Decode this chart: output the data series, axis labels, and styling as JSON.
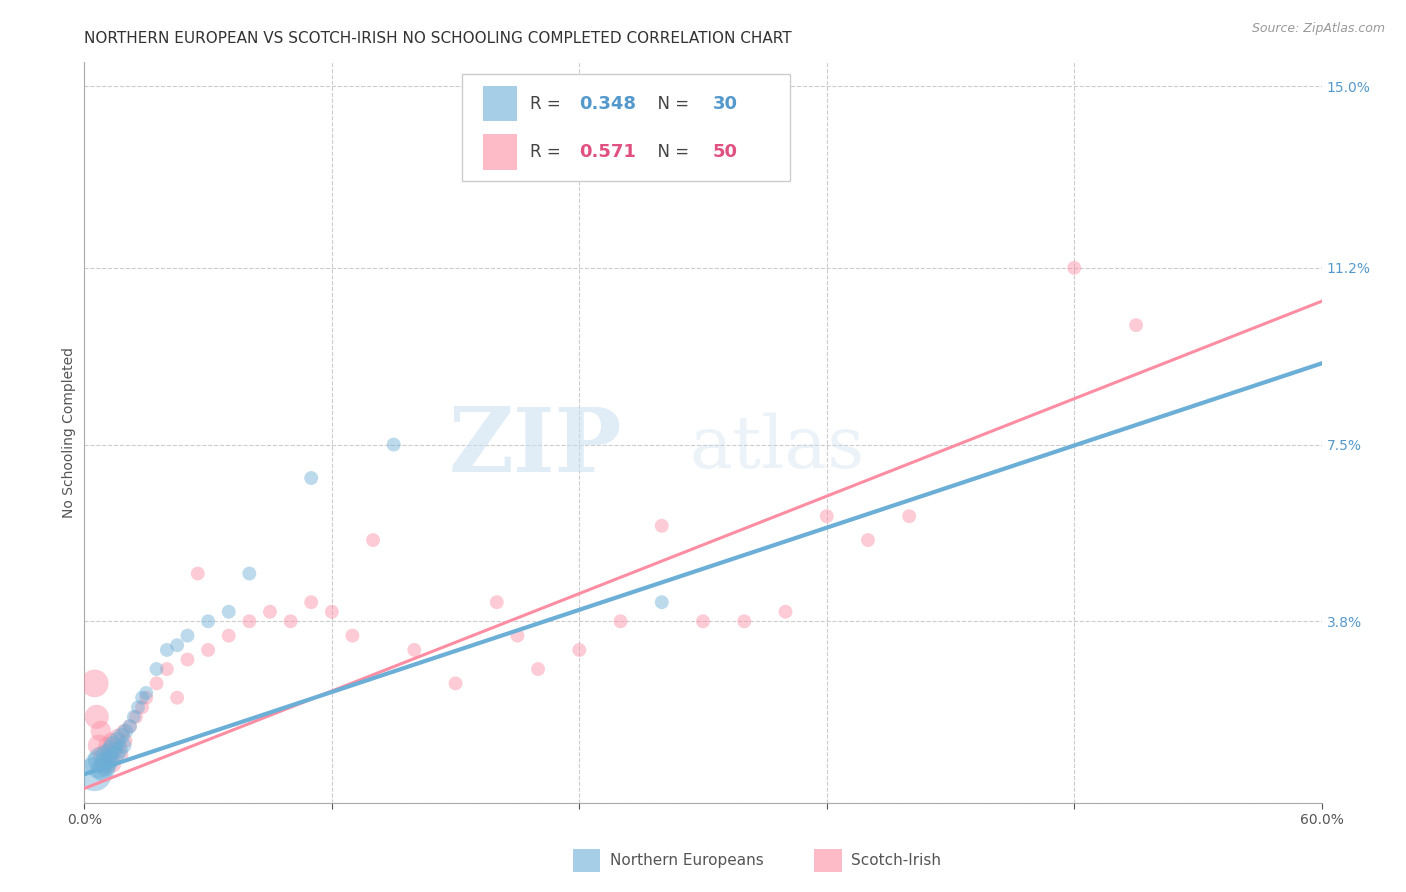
{
  "title": "NORTHERN EUROPEAN VS SCOTCH-IRISH NO SCHOOLING COMPLETED CORRELATION CHART",
  "source": "Source: ZipAtlas.com",
  "ylabel": "No Schooling Completed",
  "xlim": [
    0.0,
    0.6
  ],
  "ylim": [
    0.0,
    0.155
  ],
  "xticks": [
    0.0,
    0.12,
    0.24,
    0.36,
    0.48,
    0.6
  ],
  "xticklabels": [
    "0.0%",
    "",
    "",
    "",
    "",
    "60.0%"
  ],
  "yticks_right": [
    0.0,
    0.038,
    0.075,
    0.112,
    0.15
  ],
  "yticklabels_right": [
    "",
    "3.8%",
    "7.5%",
    "11.2%",
    "15.0%"
  ],
  "watermark_zip": "ZIP",
  "watermark_atlas": "atlas",
  "blue_color": "#6baed6",
  "pink_color": "#fc8da3",
  "blue_scatter": [
    [
      0.005,
      0.006
    ],
    [
      0.007,
      0.008
    ],
    [
      0.008,
      0.009
    ],
    [
      0.009,
      0.007
    ],
    [
      0.01,
      0.008
    ],
    [
      0.011,
      0.01
    ],
    [
      0.012,
      0.009
    ],
    [
      0.013,
      0.011
    ],
    [
      0.014,
      0.012
    ],
    [
      0.015,
      0.01
    ],
    [
      0.016,
      0.013
    ],
    [
      0.017,
      0.011
    ],
    [
      0.018,
      0.014
    ],
    [
      0.019,
      0.012
    ],
    [
      0.02,
      0.015
    ],
    [
      0.022,
      0.016
    ],
    [
      0.024,
      0.018
    ],
    [
      0.026,
      0.02
    ],
    [
      0.028,
      0.022
    ],
    [
      0.03,
      0.023
    ],
    [
      0.035,
      0.028
    ],
    [
      0.04,
      0.032
    ],
    [
      0.045,
      0.033
    ],
    [
      0.05,
      0.035
    ],
    [
      0.06,
      0.038
    ],
    [
      0.07,
      0.04
    ],
    [
      0.08,
      0.048
    ],
    [
      0.11,
      0.068
    ],
    [
      0.15,
      0.075
    ],
    [
      0.28,
      0.042
    ]
  ],
  "blue_sizes": [
    600,
    400,
    350,
    300,
    280,
    250,
    220,
    200,
    190,
    180,
    160,
    150,
    140,
    130,
    120,
    110,
    100,
    100,
    100,
    100,
    100,
    100,
    100,
    100,
    100,
    100,
    100,
    100,
    100,
    100
  ],
  "pink_scatter": [
    [
      0.005,
      0.025
    ],
    [
      0.006,
      0.018
    ],
    [
      0.007,
      0.012
    ],
    [
      0.008,
      0.015
    ],
    [
      0.009,
      0.01
    ],
    [
      0.01,
      0.008
    ],
    [
      0.011,
      0.012
    ],
    [
      0.012,
      0.01
    ],
    [
      0.013,
      0.013
    ],
    [
      0.014,
      0.008
    ],
    [
      0.015,
      0.011
    ],
    [
      0.016,
      0.014
    ],
    [
      0.017,
      0.012
    ],
    [
      0.018,
      0.01
    ],
    [
      0.019,
      0.015
    ],
    [
      0.02,
      0.013
    ],
    [
      0.022,
      0.016
    ],
    [
      0.025,
      0.018
    ],
    [
      0.028,
      0.02
    ],
    [
      0.03,
      0.022
    ],
    [
      0.035,
      0.025
    ],
    [
      0.04,
      0.028
    ],
    [
      0.045,
      0.022
    ],
    [
      0.05,
      0.03
    ],
    [
      0.055,
      0.048
    ],
    [
      0.06,
      0.032
    ],
    [
      0.07,
      0.035
    ],
    [
      0.08,
      0.038
    ],
    [
      0.09,
      0.04
    ],
    [
      0.1,
      0.038
    ],
    [
      0.11,
      0.042
    ],
    [
      0.12,
      0.04
    ],
    [
      0.13,
      0.035
    ],
    [
      0.14,
      0.055
    ],
    [
      0.16,
      0.032
    ],
    [
      0.18,
      0.025
    ],
    [
      0.2,
      0.042
    ],
    [
      0.21,
      0.035
    ],
    [
      0.22,
      0.028
    ],
    [
      0.24,
      0.032
    ],
    [
      0.26,
      0.038
    ],
    [
      0.28,
      0.058
    ],
    [
      0.3,
      0.038
    ],
    [
      0.32,
      0.038
    ],
    [
      0.34,
      0.04
    ],
    [
      0.36,
      0.06
    ],
    [
      0.38,
      0.055
    ],
    [
      0.4,
      0.06
    ],
    [
      0.48,
      0.112
    ],
    [
      0.51,
      0.1
    ]
  ],
  "pink_sizes": [
    400,
    300,
    250,
    220,
    200,
    180,
    160,
    150,
    140,
    130,
    120,
    110,
    105,
    100,
    100,
    100,
    100,
    100,
    100,
    100,
    100,
    100,
    100,
    100,
    100,
    100,
    100,
    100,
    100,
    100,
    100,
    100,
    100,
    100,
    100,
    100,
    100,
    100,
    100,
    100,
    100,
    100,
    100,
    100,
    100,
    100,
    100,
    100,
    100,
    100
  ],
  "blue_line": [
    [
      0.0,
      0.006
    ],
    [
      0.6,
      0.092
    ]
  ],
  "pink_line": [
    [
      0.0,
      0.003
    ],
    [
      0.6,
      0.105
    ]
  ],
  "grid_color": "#cccccc",
  "grid_style": "--",
  "background_color": "#ffffff",
  "title_fontsize": 11,
  "axis_label_fontsize": 10,
  "tick_fontsize": 10,
  "legend_R1": "0.348",
  "legend_N1": "30",
  "legend_R2": "0.571",
  "legend_N2": "50",
  "blue_text_color": "#5599cc",
  "pink_text_color": "#e05080",
  "label_color": "#555555"
}
